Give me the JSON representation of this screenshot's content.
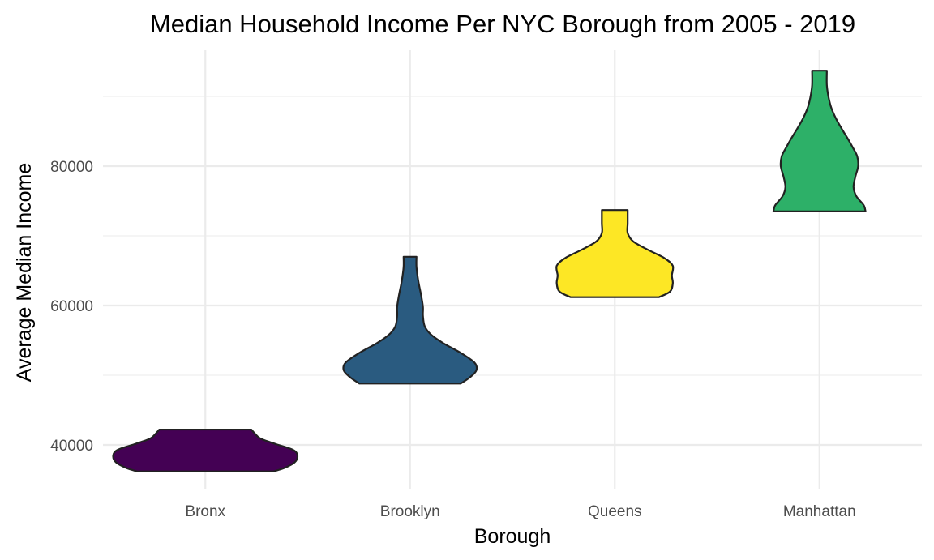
{
  "chart_data": {
    "type": "violin",
    "title": "Median Household Income Per NYC Borough from 2005 - 2019",
    "xlabel": "Borough",
    "ylabel": "Average Median Income",
    "categories": [
      "Bronx",
      "Brooklyn",
      "Queens",
      "Manhattan"
    ],
    "y_ticks": [
      40000,
      60000,
      80000
    ],
    "ylim": [
      34000,
      96000
    ],
    "grid": true,
    "legend": "none",
    "series": [
      {
        "category": "Bronx",
        "color": "#440154",
        "min": 36200,
        "max": 42200,
        "density": [
          [
            36200,
            0.74
          ],
          [
            36700,
            0.86
          ],
          [
            37500,
            0.97
          ],
          [
            38500,
            1.0
          ],
          [
            39300,
            0.95
          ],
          [
            40100,
            0.77
          ],
          [
            40900,
            0.6
          ],
          [
            41600,
            0.54
          ],
          [
            42200,
            0.5
          ]
        ]
      },
      {
        "category": "Brooklyn",
        "color": "#2A5B80",
        "min": 48800,
        "max": 67000,
        "density": [
          [
            48800,
            0.55
          ],
          [
            49700,
            0.65
          ],
          [
            50700,
            0.72
          ],
          [
            51800,
            0.7
          ],
          [
            53200,
            0.55
          ],
          [
            54600,
            0.36
          ],
          [
            55800,
            0.23
          ],
          [
            57000,
            0.16
          ],
          [
            58500,
            0.14
          ],
          [
            59800,
            0.14
          ],
          [
            61500,
            0.12
          ],
          [
            63500,
            0.09
          ],
          [
            65500,
            0.07
          ],
          [
            67000,
            0.07
          ]
        ]
      },
      {
        "category": "Queens",
        "color": "#FDE725",
        "min": 61200,
        "max": 73700,
        "density": [
          [
            61200,
            0.48
          ],
          [
            62000,
            0.6
          ],
          [
            63200,
            0.63
          ],
          [
            64300,
            0.62
          ],
          [
            65700,
            0.63
          ],
          [
            66800,
            0.54
          ],
          [
            68000,
            0.36
          ],
          [
            69200,
            0.2
          ],
          [
            70400,
            0.14
          ],
          [
            71800,
            0.14
          ],
          [
            73700,
            0.14
          ]
        ]
      },
      {
        "category": "Manhattan",
        "color": "#2DB068",
        "min": 73500,
        "max": 93700,
        "density": [
          [
            73500,
            0.5
          ],
          [
            74400,
            0.48
          ],
          [
            75700,
            0.4
          ],
          [
            77000,
            0.37
          ],
          [
            78500,
            0.39
          ],
          [
            80000,
            0.42
          ],
          [
            81400,
            0.41
          ],
          [
            82700,
            0.36
          ],
          [
            84100,
            0.3
          ],
          [
            85400,
            0.24
          ],
          [
            86800,
            0.18
          ],
          [
            88300,
            0.13
          ],
          [
            89800,
            0.1
          ],
          [
            91600,
            0.08
          ],
          [
            93700,
            0.08
          ]
        ]
      }
    ]
  }
}
